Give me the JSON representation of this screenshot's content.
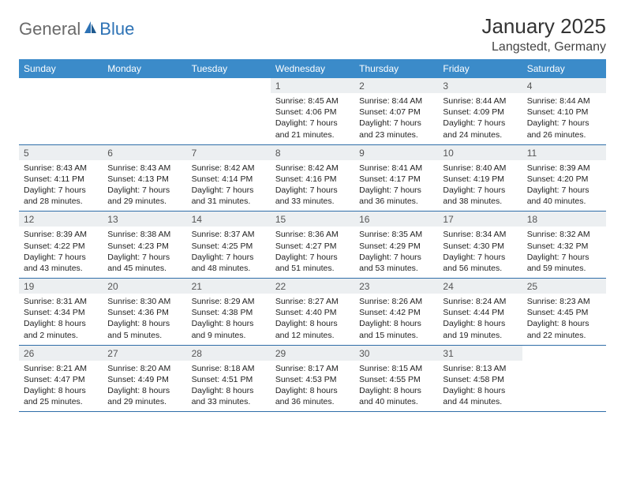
{
  "logo": {
    "general": "General",
    "blue": "Blue"
  },
  "title": "January 2025",
  "location": "Langstedt, Germany",
  "colors": {
    "header_bg": "#3b8bc9",
    "header_text": "#ffffff",
    "daynum_bg": "#eceff1",
    "row_divider": "#2f6ea8",
    "logo_gray": "#6a6a6a",
    "logo_blue": "#2d72b5",
    "text": "#222222",
    "background": "#ffffff"
  },
  "day_names": [
    "Sunday",
    "Monday",
    "Tuesday",
    "Wednesday",
    "Thursday",
    "Friday",
    "Saturday"
  ],
  "weeks": [
    [
      {
        "n": "",
        "sr": "",
        "ss": "",
        "dl": ""
      },
      {
        "n": "",
        "sr": "",
        "ss": "",
        "dl": ""
      },
      {
        "n": "",
        "sr": "",
        "ss": "",
        "dl": ""
      },
      {
        "n": "1",
        "sr": "Sunrise: 8:45 AM",
        "ss": "Sunset: 4:06 PM",
        "dl": "Daylight: 7 hours and 21 minutes."
      },
      {
        "n": "2",
        "sr": "Sunrise: 8:44 AM",
        "ss": "Sunset: 4:07 PM",
        "dl": "Daylight: 7 hours and 23 minutes."
      },
      {
        "n": "3",
        "sr": "Sunrise: 8:44 AM",
        "ss": "Sunset: 4:09 PM",
        "dl": "Daylight: 7 hours and 24 minutes."
      },
      {
        "n": "4",
        "sr": "Sunrise: 8:44 AM",
        "ss": "Sunset: 4:10 PM",
        "dl": "Daylight: 7 hours and 26 minutes."
      }
    ],
    [
      {
        "n": "5",
        "sr": "Sunrise: 8:43 AM",
        "ss": "Sunset: 4:11 PM",
        "dl": "Daylight: 7 hours and 28 minutes."
      },
      {
        "n": "6",
        "sr": "Sunrise: 8:43 AM",
        "ss": "Sunset: 4:13 PM",
        "dl": "Daylight: 7 hours and 29 minutes."
      },
      {
        "n": "7",
        "sr": "Sunrise: 8:42 AM",
        "ss": "Sunset: 4:14 PM",
        "dl": "Daylight: 7 hours and 31 minutes."
      },
      {
        "n": "8",
        "sr": "Sunrise: 8:42 AM",
        "ss": "Sunset: 4:16 PM",
        "dl": "Daylight: 7 hours and 33 minutes."
      },
      {
        "n": "9",
        "sr": "Sunrise: 8:41 AM",
        "ss": "Sunset: 4:17 PM",
        "dl": "Daylight: 7 hours and 36 minutes."
      },
      {
        "n": "10",
        "sr": "Sunrise: 8:40 AM",
        "ss": "Sunset: 4:19 PM",
        "dl": "Daylight: 7 hours and 38 minutes."
      },
      {
        "n": "11",
        "sr": "Sunrise: 8:39 AM",
        "ss": "Sunset: 4:20 PM",
        "dl": "Daylight: 7 hours and 40 minutes."
      }
    ],
    [
      {
        "n": "12",
        "sr": "Sunrise: 8:39 AM",
        "ss": "Sunset: 4:22 PM",
        "dl": "Daylight: 7 hours and 43 minutes."
      },
      {
        "n": "13",
        "sr": "Sunrise: 8:38 AM",
        "ss": "Sunset: 4:23 PM",
        "dl": "Daylight: 7 hours and 45 minutes."
      },
      {
        "n": "14",
        "sr": "Sunrise: 8:37 AM",
        "ss": "Sunset: 4:25 PM",
        "dl": "Daylight: 7 hours and 48 minutes."
      },
      {
        "n": "15",
        "sr": "Sunrise: 8:36 AM",
        "ss": "Sunset: 4:27 PM",
        "dl": "Daylight: 7 hours and 51 minutes."
      },
      {
        "n": "16",
        "sr": "Sunrise: 8:35 AM",
        "ss": "Sunset: 4:29 PM",
        "dl": "Daylight: 7 hours and 53 minutes."
      },
      {
        "n": "17",
        "sr": "Sunrise: 8:34 AM",
        "ss": "Sunset: 4:30 PM",
        "dl": "Daylight: 7 hours and 56 minutes."
      },
      {
        "n": "18",
        "sr": "Sunrise: 8:32 AM",
        "ss": "Sunset: 4:32 PM",
        "dl": "Daylight: 7 hours and 59 minutes."
      }
    ],
    [
      {
        "n": "19",
        "sr": "Sunrise: 8:31 AM",
        "ss": "Sunset: 4:34 PM",
        "dl": "Daylight: 8 hours and 2 minutes."
      },
      {
        "n": "20",
        "sr": "Sunrise: 8:30 AM",
        "ss": "Sunset: 4:36 PM",
        "dl": "Daylight: 8 hours and 5 minutes."
      },
      {
        "n": "21",
        "sr": "Sunrise: 8:29 AM",
        "ss": "Sunset: 4:38 PM",
        "dl": "Daylight: 8 hours and 9 minutes."
      },
      {
        "n": "22",
        "sr": "Sunrise: 8:27 AM",
        "ss": "Sunset: 4:40 PM",
        "dl": "Daylight: 8 hours and 12 minutes."
      },
      {
        "n": "23",
        "sr": "Sunrise: 8:26 AM",
        "ss": "Sunset: 4:42 PM",
        "dl": "Daylight: 8 hours and 15 minutes."
      },
      {
        "n": "24",
        "sr": "Sunrise: 8:24 AM",
        "ss": "Sunset: 4:44 PM",
        "dl": "Daylight: 8 hours and 19 minutes."
      },
      {
        "n": "25",
        "sr": "Sunrise: 8:23 AM",
        "ss": "Sunset: 4:45 PM",
        "dl": "Daylight: 8 hours and 22 minutes."
      }
    ],
    [
      {
        "n": "26",
        "sr": "Sunrise: 8:21 AM",
        "ss": "Sunset: 4:47 PM",
        "dl": "Daylight: 8 hours and 25 minutes."
      },
      {
        "n": "27",
        "sr": "Sunrise: 8:20 AM",
        "ss": "Sunset: 4:49 PM",
        "dl": "Daylight: 8 hours and 29 minutes."
      },
      {
        "n": "28",
        "sr": "Sunrise: 8:18 AM",
        "ss": "Sunset: 4:51 PM",
        "dl": "Daylight: 8 hours and 33 minutes."
      },
      {
        "n": "29",
        "sr": "Sunrise: 8:17 AM",
        "ss": "Sunset: 4:53 PM",
        "dl": "Daylight: 8 hours and 36 minutes."
      },
      {
        "n": "30",
        "sr": "Sunrise: 8:15 AM",
        "ss": "Sunset: 4:55 PM",
        "dl": "Daylight: 8 hours and 40 minutes."
      },
      {
        "n": "31",
        "sr": "Sunrise: 8:13 AM",
        "ss": "Sunset: 4:58 PM",
        "dl": "Daylight: 8 hours and 44 minutes."
      },
      {
        "n": "",
        "sr": "",
        "ss": "",
        "dl": ""
      }
    ]
  ]
}
